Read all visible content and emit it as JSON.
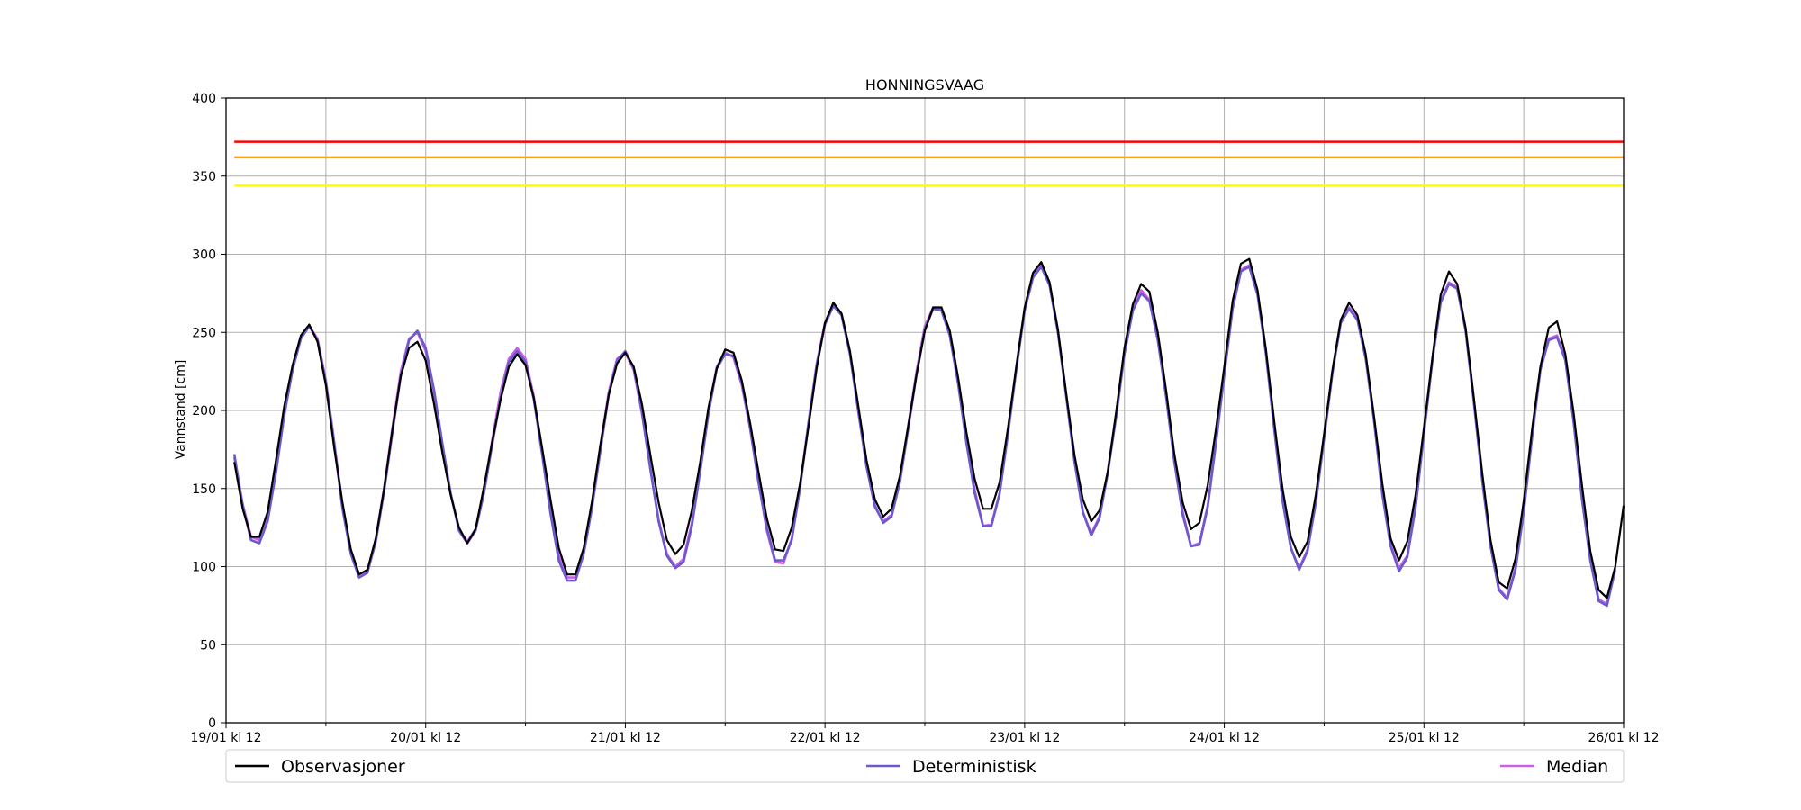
{
  "chart_data": {
    "type": "line",
    "title": "HONNINGSVAAG",
    "xlabel": "",
    "ylabel": "Vannstand [cm]",
    "ylim": [
      0,
      400
    ],
    "yticks": [
      0,
      50,
      100,
      150,
      200,
      250,
      300,
      350,
      400
    ],
    "xlim_hours": [
      0,
      168
    ],
    "x_major_ticks": [
      {
        "hour": 0,
        "label": "19/01 kl 12"
      },
      {
        "hour": 24,
        "label": "20/01 kl 12"
      },
      {
        "hour": 48,
        "label": "21/01 kl 12"
      },
      {
        "hour": 72,
        "label": "22/01 kl 12"
      },
      {
        "hour": 96,
        "label": "23/01 kl 12"
      },
      {
        "hour": 120,
        "label": "24/01 kl 12"
      },
      {
        "hour": 144,
        "label": "25/01 kl 12"
      },
      {
        "hour": 168,
        "label": "26/01 kl 12"
      }
    ],
    "x_minor_ticks": [
      12,
      36,
      60,
      84,
      108,
      132,
      156
    ],
    "grid": true,
    "legend_placement": "bottom",
    "thresholds": [
      {
        "value": 372,
        "color": "#ff0000"
      },
      {
        "value": 362,
        "color": "#ffa500"
      },
      {
        "value": 344,
        "color": "#ffff00"
      }
    ],
    "series": [
      {
        "name": "Observasjoner",
        "color": "#000000",
        "x": [
          1,
          2,
          3,
          4,
          5,
          6,
          7,
          8,
          9,
          10,
          11,
          12,
          13,
          14,
          15,
          16,
          17,
          18,
          19,
          20,
          21,
          22,
          23,
          24,
          25,
          26,
          27,
          28,
          29,
          30,
          31,
          32,
          33,
          34,
          35,
          36,
          37,
          38,
          39,
          40,
          41,
          42,
          43,
          44,
          45,
          46,
          47,
          48,
          49,
          50,
          51,
          52,
          53,
          54,
          55,
          56,
          57,
          58,
          59,
          60,
          61,
          62,
          63,
          64,
          65,
          66,
          67,
          68,
          69,
          70,
          71,
          72,
          73,
          74,
          75,
          76,
          77,
          78,
          79,
          80,
          81,
          82,
          83,
          84,
          85,
          86,
          87,
          88,
          89,
          90,
          91,
          92,
          93,
          94,
          95,
          96,
          97,
          98,
          99,
          100,
          101,
          102,
          103,
          104,
          105,
          106,
          107,
          108,
          109,
          110,
          111,
          112,
          113,
          114,
          115,
          116,
          117,
          118,
          119,
          120,
          121,
          122,
          123,
          124,
          125,
          126,
          127,
          128,
          129,
          130,
          131,
          132,
          133,
          134,
          135,
          136,
          137,
          138,
          139,
          140,
          141,
          142,
          143,
          144,
          145,
          146,
          147,
          148,
          149,
          150,
          151,
          152,
          153,
          154,
          155,
          156,
          157,
          158,
          159,
          160,
          161,
          162,
          163,
          164,
          165,
          166,
          167,
          168
        ],
        "y": [
          167,
          137,
          119,
          119,
          135,
          168,
          203,
          229,
          248,
          255,
          244,
          216,
          176,
          141,
          111,
          95,
          98,
          118,
          150,
          188,
          222,
          240,
          244,
          232,
          204,
          173,
          146,
          125,
          115,
          124,
          151,
          180,
          207,
          228,
          236,
          229,
          208,
          176,
          143,
          112,
          95,
          95,
          112,
          142,
          178,
          210,
          230,
          237,
          228,
          204,
          172,
          141,
          117,
          108,
          114,
          136,
          167,
          202,
          227,
          239,
          237,
          219,
          192,
          161,
          131,
          111,
          110,
          125,
          153,
          189,
          227,
          256,
          269,
          262,
          238,
          203,
          168,
          143,
          132,
          137,
          158,
          190,
          223,
          251,
          266,
          266,
          251,
          221,
          186,
          156,
          137,
          137,
          154,
          189,
          228,
          266,
          288,
          295,
          282,
          252,
          211,
          171,
          143,
          129,
          136,
          161,
          199,
          240,
          268,
          281,
          276,
          250,
          213,
          172,
          141,
          124,
          128,
          152,
          188,
          228,
          270,
          294,
          297,
          277,
          239,
          193,
          150,
          119,
          106,
          116,
          146,
          185,
          226,
          258,
          269,
          261,
          236,
          196,
          153,
          118,
          104,
          116,
          146,
          189,
          233,
          274,
          289,
          281,
          253,
          208,
          160,
          117,
          90,
          86,
          105,
          142,
          188,
          228,
          253,
          257,
          236,
          198,
          152,
          110,
          85,
          80,
          100,
          139
        ]
      },
      {
        "name": "Deterministisk",
        "color": "#6a5acd",
        "x": [
          1,
          2,
          3,
          4,
          5,
          6,
          7,
          8,
          9,
          10,
          11,
          12,
          13,
          14,
          15,
          16,
          17,
          18,
          19,
          20,
          21,
          22,
          23,
          24,
          25,
          26,
          27,
          28,
          29,
          30,
          31,
          32,
          33,
          34,
          35,
          36,
          37,
          38,
          39,
          40,
          41,
          42,
          43,
          44,
          45,
          46,
          47,
          48,
          49,
          50,
          51,
          52,
          53,
          54,
          55,
          56,
          57,
          58,
          59,
          60,
          61,
          62,
          63,
          64,
          65,
          66,
          67,
          68,
          69,
          70,
          71,
          72,
          73,
          74,
          75,
          76,
          77,
          78,
          79,
          80,
          81,
          82,
          83,
          84,
          85,
          86,
          87,
          88,
          89,
          90,
          91,
          92,
          93,
          94,
          95,
          96,
          97,
          98,
          99,
          100,
          101,
          102,
          103,
          104,
          105,
          106,
          107,
          108,
          109,
          110,
          111,
          112,
          113,
          114,
          115,
          116,
          117,
          118,
          119,
          120,
          121,
          122,
          123,
          124,
          125,
          126,
          127,
          128,
          129,
          130,
          131,
          132,
          133,
          134,
          135,
          136,
          137,
          138,
          139,
          140,
          141,
          142,
          143,
          144,
          145,
          146,
          147,
          148,
          149,
          150,
          151,
          152,
          153,
          154,
          155,
          156,
          157,
          158,
          159,
          160,
          161,
          162,
          163,
          164,
          165,
          166,
          167
        ],
        "y": [
          172,
          139,
          117,
          115,
          129,
          160,
          197,
          226,
          246,
          254,
          245,
          218,
          179,
          137,
          108,
          93,
          96,
          116,
          148,
          186,
          222,
          245,
          251,
          240,
          213,
          179,
          147,
          123,
          115,
          123,
          147,
          178,
          208,
          231,
          238,
          231,
          207,
          172,
          134,
          104,
          91,
          91,
          108,
          138,
          174,
          210,
          232,
          238,
          227,
          199,
          163,
          129,
          107,
          99,
          103,
          126,
          161,
          198,
          227,
          236,
          235,
          218,
          189,
          154,
          125,
          104,
          104,
          117,
          150,
          191,
          229,
          255,
          267,
          261,
          236,
          200,
          164,
          139,
          128,
          132,
          154,
          188,
          223,
          252,
          265,
          264,
          248,
          217,
          179,
          147,
          126,
          126,
          147,
          185,
          226,
          264,
          285,
          292,
          280,
          250,
          209,
          167,
          135,
          120,
          131,
          160,
          196,
          236,
          264,
          275,
          270,
          245,
          209,
          167,
          133,
          113,
          114,
          138,
          179,
          223,
          265,
          289,
          292,
          274,
          236,
          188,
          142,
          112,
          98,
          110,
          141,
          182,
          224,
          256,
          265,
          258,
          233,
          193,
          146,
          113,
          97,
          106,
          138,
          185,
          231,
          269,
          281,
          278,
          251,
          205,
          155,
          113,
          85,
          79,
          98,
          135,
          183,
          226,
          245,
          247,
          232,
          192,
          143,
          104,
          78,
          75,
          98
        ]
      },
      {
        "name": "Median",
        "color": "#c960e6",
        "x": [
          1,
          2,
          3,
          4,
          5,
          6,
          7,
          8,
          9,
          10,
          11,
          12,
          13,
          14,
          15,
          16,
          17,
          18,
          19,
          20,
          21,
          22,
          23,
          24,
          25,
          26,
          27,
          28,
          29,
          30,
          31,
          32,
          33,
          34,
          35,
          36,
          37,
          38,
          39,
          40,
          41,
          42,
          43,
          44,
          45,
          46,
          47,
          48,
          49,
          50,
          51,
          52,
          53,
          54,
          55,
          56,
          57,
          58,
          59,
          60,
          61,
          62,
          63,
          64,
          65,
          66,
          67,
          68,
          69,
          70,
          71,
          72,
          73,
          74,
          75,
          76,
          77,
          78,
          79,
          80,
          81,
          82,
          83,
          84,
          85,
          86,
          87,
          88,
          89,
          90,
          91,
          92,
          93,
          94,
          95,
          96,
          97,
          98,
          99,
          100,
          101,
          102,
          103,
          104,
          105,
          106,
          107,
          108,
          109,
          110,
          111,
          112,
          113,
          114,
          115,
          116,
          117,
          118,
          119,
          120,
          121,
          122,
          123,
          124,
          125,
          126,
          127,
          128,
          129,
          130,
          131,
          132,
          133,
          134,
          135,
          136,
          137,
          138,
          139,
          140,
          141,
          142,
          143,
          144,
          145,
          146,
          147,
          148,
          149,
          150,
          151,
          152,
          153,
          154,
          155,
          156,
          157,
          158,
          159,
          160,
          161,
          162,
          163,
          164,
          165,
          166,
          167
        ],
        "y": [
          170,
          140,
          119,
          117,
          131,
          162,
          198,
          227,
          246,
          254,
          246,
          219,
          180,
          139,
          109,
          95,
          97,
          118,
          150,
          189,
          225,
          246,
          250,
          238,
          212,
          178,
          147,
          124,
          116,
          124,
          149,
          181,
          212,
          233,
          240,
          233,
          209,
          174,
          137,
          107,
          93,
          93,
          110,
          140,
          177,
          212,
          233,
          237,
          226,
          198,
          163,
          130,
          108,
          100,
          105,
          128,
          163,
          200,
          228,
          237,
          234,
          216,
          188,
          155,
          123,
          103,
          102,
          118,
          151,
          192,
          230,
          256,
          268,
          261,
          236,
          199,
          164,
          138,
          129,
          133,
          155,
          190,
          225,
          254,
          266,
          265,
          248,
          218,
          181,
          149,
          126,
          127,
          147,
          186,
          228,
          265,
          286,
          293,
          281,
          251,
          210,
          167,
          135,
          121,
          132,
          161,
          198,
          238,
          266,
          277,
          271,
          246,
          209,
          168,
          135,
          113,
          115,
          139,
          180,
          224,
          266,
          290,
          293,
          275,
          237,
          189,
          143,
          112,
          99,
          111,
          142,
          183,
          225,
          257,
          266,
          259,
          234,
          194,
          148,
          114,
          99,
          107,
          139,
          186,
          232,
          270,
          282,
          279,
          252,
          206,
          156,
          114,
          86,
          80,
          99,
          136,
          184,
          227,
          246,
          248,
          233,
          193,
          144,
          105,
          79,
          76,
          99
        ]
      }
    ]
  }
}
